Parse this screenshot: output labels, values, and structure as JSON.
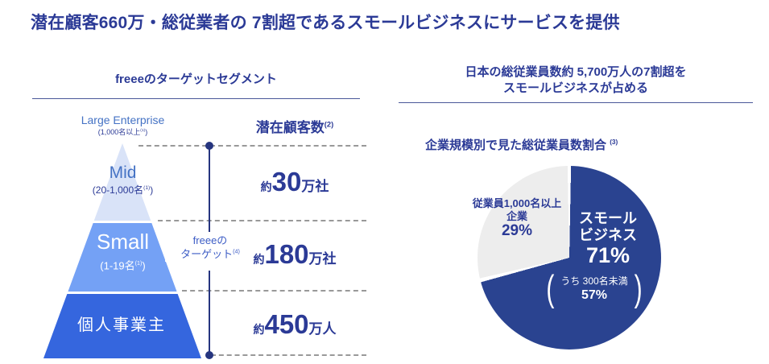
{
  "slide": {
    "title": "潜在顧客660万・総従業者の 7割超であるスモールビジネスにサービスを提供"
  },
  "left": {
    "header": "freeeのターゲットセグメント",
    "pyramid": {
      "large": {
        "label": "Large Enterprise",
        "sub": "(1,000名以上",
        "sub_sup": "(1)",
        "sub_close": ")"
      },
      "mid": {
        "label": "Mid",
        "sub": "(20-1,000名",
        "sub_sup": "(1)",
        "sub_close": ")"
      },
      "small": {
        "label": "Small",
        "sub": "(1-19名",
        "sub_sup": "(1)",
        "sub_close": ")"
      },
      "sole": {
        "label": "個人事業主"
      }
    },
    "column_header": {
      "text": "潜在顧客数",
      "sup": "(2)"
    },
    "target": {
      "line1": "freeeの",
      "line2": "ターゲット",
      "sup": "(4)"
    },
    "values": [
      {
        "prefix": "約",
        "number": "30",
        "unit": "万社"
      },
      {
        "prefix": "約",
        "number": "180",
        "unit": "万社"
      },
      {
        "prefix": "約",
        "number": "450",
        "unit": "万人"
      }
    ]
  },
  "right": {
    "header_line1": "日本の総従業員数約 5,700万人の7割超を",
    "header_line2": "スモールビジネスが占める",
    "chart_title": {
      "text": "企業規模別で見た総従業員数割合",
      "sup": "(3)"
    },
    "pie_labels": {
      "large_company": {
        "line1": "従業員1,000名以上",
        "line2": "企業",
        "pct": "29%"
      },
      "small_business": {
        "line1": "スモール",
        "line2": "ビジネス",
        "pct": "71%"
      },
      "small_business_note": {
        "open": "(",
        "text": "うち 300名未満",
        "pct": "57%",
        "close": ")"
      }
    }
  },
  "colors": {
    "title_blue": "#2b3a96",
    "label_blue": "#4472c4",
    "pyramid_pale": "#d9e3f8",
    "pyramid_small": "#74a1f5",
    "pyramid_sole": "#3566de",
    "pie_navy": "#2a4390",
    "pie_gray": "#ededed",
    "dashed_gray": "#999999",
    "measure_line_navy": "#26357f"
  },
  "chart_data": [
    {
      "type": "pyramid",
      "title": "freeeのターゲットセグメント",
      "value_column_header": "潜在顧客数 (2)",
      "segments": [
        {
          "label": "Large Enterprise",
          "employee_range": "1,000名以上 (1)",
          "potential_customers": null,
          "freee_target": false
        },
        {
          "label": "Mid",
          "employee_range": "20-1,000名 (1)",
          "potential_customers": "約30万社",
          "freee_target": true
        },
        {
          "label": "Small",
          "employee_range": "1-19名 (1)",
          "potential_customers": "約180万社",
          "freee_target": true
        },
        {
          "label": "個人事業主",
          "employee_range": null,
          "potential_customers": "約450万人",
          "freee_target": true
        }
      ],
      "target_annotation": "freeeのターゲット (4)"
    },
    {
      "type": "pie",
      "title": "企業規模別で見た総従業員数割合 (3)",
      "subtitle": "日本の総従業員数約 5,700万人の7割超をスモールビジネスが占める",
      "slices": [
        {
          "label": "スモールビジネス",
          "value_pct": 71,
          "color": "#2a4390",
          "sub_note": "うち 300名未満 57%"
        },
        {
          "label": "従業員1,000名以上 企業",
          "value_pct": 29,
          "color": "#ededed"
        }
      ],
      "start_angle": "12-o-clock",
      "direction": "clockwise",
      "legend_position": "on-slices"
    }
  ]
}
